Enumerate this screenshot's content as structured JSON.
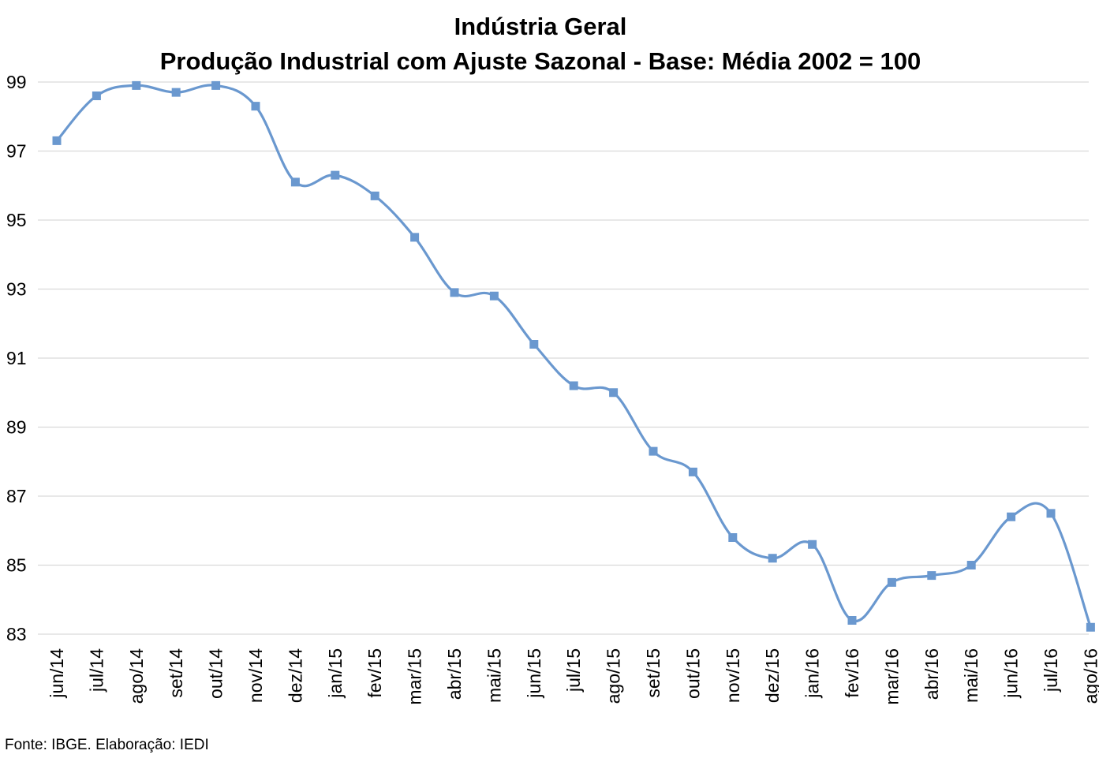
{
  "chart_data": {
    "type": "line",
    "title": "Indústria Geral",
    "subtitle": "Produção Industrial com Ajuste Sazonal - Base: Média 2002 = 100",
    "xlabel": "",
    "ylabel": "",
    "ylim": [
      83,
      99
    ],
    "yticks": [
      83,
      85,
      87,
      89,
      91,
      93,
      95,
      97,
      99
    ],
    "grid": true,
    "smooth": true,
    "line_color": "#6A98CF",
    "marker": "square",
    "categories": [
      "jun/14",
      "jul/14",
      "ago/14",
      "set/14",
      "out/14",
      "nov/14",
      "dez/14",
      "jan/15",
      "fev/15",
      "mar/15",
      "abr/15",
      "mai/15",
      "jun/15",
      "jul/15",
      "ago/15",
      "set/15",
      "out/15",
      "nov/15",
      "dez/15",
      "jan/16",
      "fev/16",
      "mar/16",
      "abr/16",
      "mai/16",
      "jun/16",
      "jul/16",
      "ago/16"
    ],
    "series": [
      {
        "values": [
          97.3,
          98.6,
          98.9,
          98.7,
          98.9,
          98.3,
          96.1,
          96.3,
          95.7,
          94.5,
          92.9,
          92.8,
          91.4,
          90.2,
          90.0,
          88.3,
          87.7,
          85.8,
          85.2,
          85.6,
          83.4,
          84.5,
          84.7,
          85.0,
          86.4,
          86.5,
          83.2
        ]
      }
    ]
  },
  "footer": {
    "source": "Fonte: IBGE. Elaboração: IEDI"
  }
}
